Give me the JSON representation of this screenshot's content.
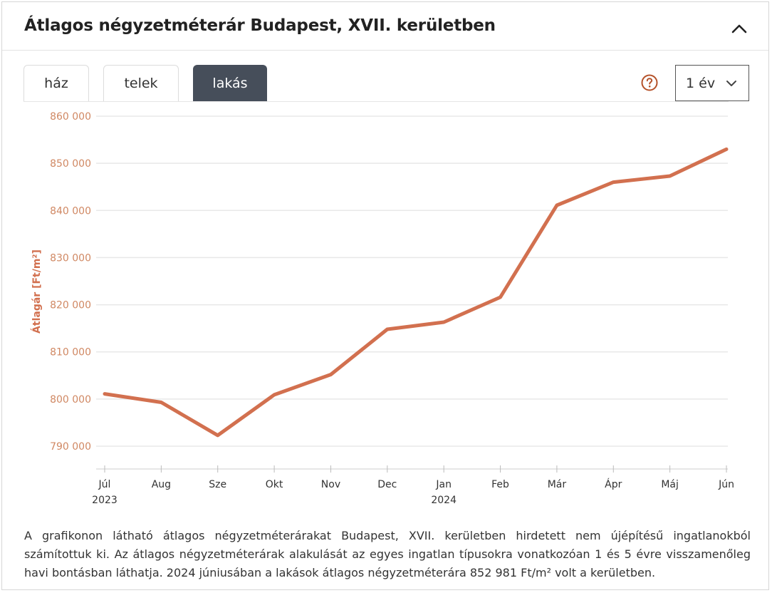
{
  "header": {
    "title": "Átlagos négyzetméterár Budapest, XVII. kerületben"
  },
  "tabs": [
    {
      "label": "ház",
      "active": false
    },
    {
      "label": "telek",
      "active": false
    },
    {
      "label": "lakás",
      "active": true
    }
  ],
  "period_select": {
    "value": "1 év"
  },
  "icons": {
    "collapse": "chevron-up-icon",
    "help": "question-circle-icon",
    "dropdown": "chevron-down-icon"
  },
  "colors": {
    "accent": "#d2704f",
    "tick_text": "#d08863",
    "tab_active_bg": "#464e5a",
    "help_icon": "#b5522a"
  },
  "chart_data": {
    "type": "line",
    "ylabel": "Átlagár [Ft/m²]",
    "xlabel": "",
    "ylim": [
      790000,
      860000
    ],
    "yticks": [
      790000,
      800000,
      810000,
      820000,
      830000,
      840000,
      850000,
      860000
    ],
    "ytick_labels": [
      "790 000",
      "800 000",
      "810 000",
      "820 000",
      "830 000",
      "840 000",
      "850 000",
      "860 000"
    ],
    "categories": [
      "Júl",
      "Aug",
      "Sze",
      "Okt",
      "Nov",
      "Dec",
      "Jan",
      "Feb",
      "Már",
      "Ápr",
      "Máj",
      "Jún"
    ],
    "year_labels": [
      {
        "index": 0,
        "label": "2023"
      },
      {
        "index": 6,
        "label": "2024"
      }
    ],
    "series": [
      {
        "values": [
          801100,
          799300,
          792300,
          800900,
          805200,
          814800,
          816300,
          821600,
          841100,
          846000,
          847300,
          852981
        ]
      }
    ],
    "grid": true,
    "color": "#d2704f"
  },
  "description": "A grafikonon látható átlagos négyzetméterárakat Budapest, XVII. kerületben hirdetett nem újépítésű ingatlanokból számítottuk ki. Az átlagos négyzetméterárak alakulását az egyes ingatlan típusokra vonatkozóan 1 és 5 évre visszamenőleg havi bontásban láthatja. 2024 júniusában a lakások átlagos négyzetméterára 852 981 Ft/m² volt a kerületben."
}
